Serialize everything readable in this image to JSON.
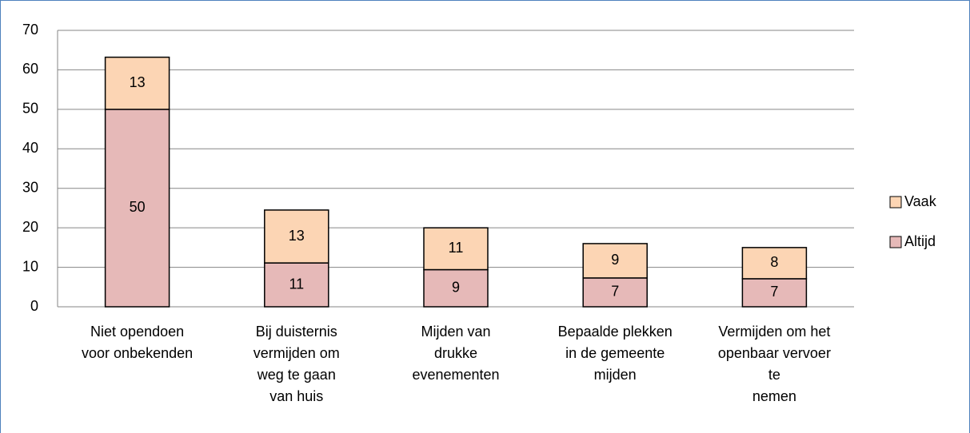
{
  "chart_data": {
    "type": "stacked_bar",
    "categories": [
      [
        "Niet opendoen",
        "voor onbekenden"
      ],
      [
        "Bij duisternis",
        "vermijden om",
        "weg te gaan",
        "van huis"
      ],
      [
        "Mijden van",
        "drukke",
        "evenementen"
      ],
      [
        "Bepaalde plekken",
        "in de gemeente",
        "mijden"
      ],
      [
        "Vermijden om het",
        "openbaar vervoer",
        "te",
        "nemen"
      ]
    ],
    "series": [
      {
        "name": "Altijd",
        "color": "#e6b9b8",
        "values": [
          50,
          11.1,
          9.4,
          7.3,
          7.1
        ],
        "value_labels": [
          "50",
          "11",
          "9",
          "7",
          "7"
        ]
      },
      {
        "name": "Vaak",
        "color": "#fcd5b4",
        "values": [
          13.2,
          13.4,
          10.6,
          8.7,
          7.9
        ],
        "value_labels": [
          "13",
          "13",
          "11",
          "9",
          "8"
        ]
      }
    ],
    "ylim": [
      0,
      70
    ],
    "yticks": [
      0,
      10,
      20,
      30,
      40,
      50,
      60,
      70
    ],
    "grid": true,
    "legend": "right"
  }
}
